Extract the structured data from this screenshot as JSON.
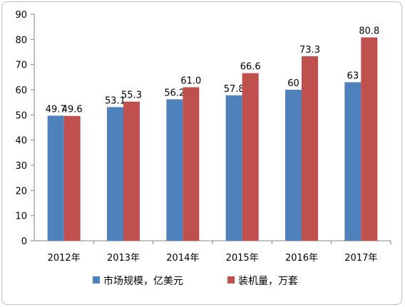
{
  "chart_data": {
    "type": "bar",
    "categories": [
      "2012年",
      "2013年",
      "2014年",
      "2015年",
      "2016年",
      "2017年"
    ],
    "series": [
      {
        "name": "市场规模，亿美元",
        "color": "#4f81bd",
        "values": [
          49.7,
          53.1,
          56.2,
          57.8,
          60,
          63
        ],
        "labels": [
          "49.7",
          "53.1",
          "56.2",
          "57.8",
          "60",
          "63"
        ]
      },
      {
        "name": "装机量，万套",
        "color": "#c0504d",
        "values": [
          49.6,
          55.3,
          61.0,
          66.6,
          73.3,
          80.8
        ],
        "labels": [
          "49.6",
          "55.3",
          "61.0",
          "66.6",
          "73.3",
          "80.8"
        ]
      }
    ],
    "ylim": [
      0,
      90
    ],
    "yticks": [
      0,
      10,
      20,
      30,
      40,
      50,
      60,
      70,
      80,
      90
    ],
    "legend_position": "bottom",
    "grid": false
  }
}
